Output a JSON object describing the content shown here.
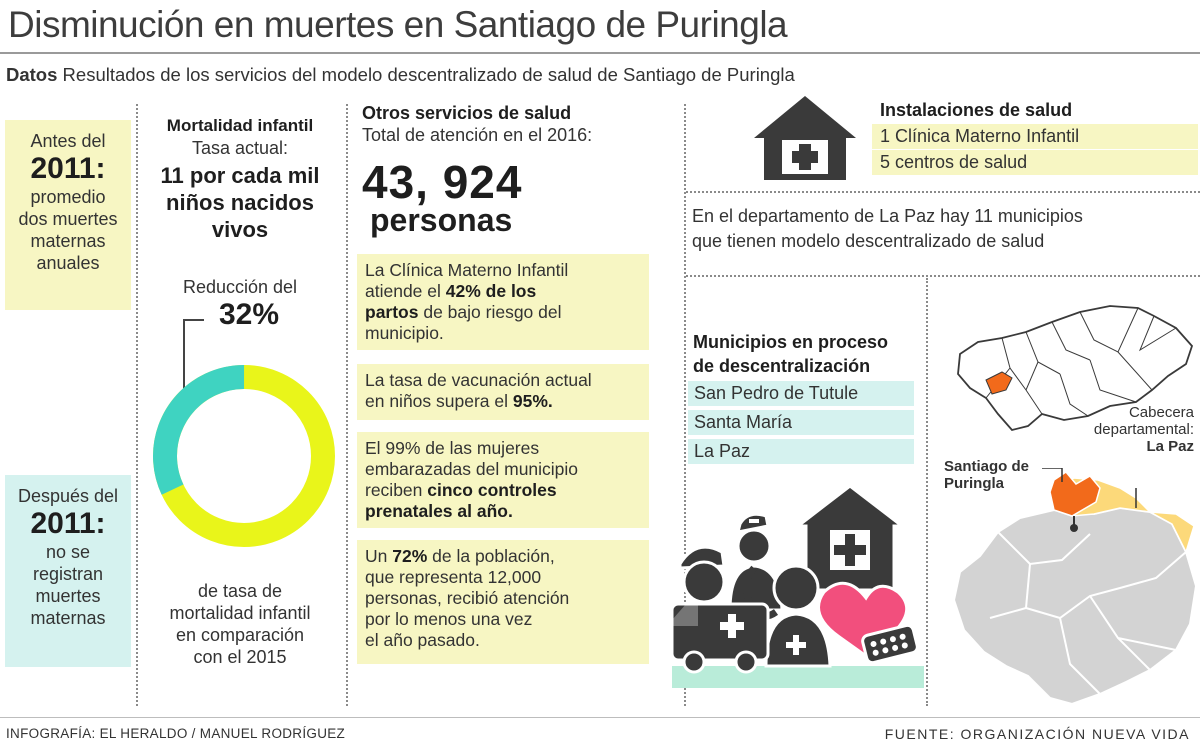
{
  "title": "Disminución en muertes en Santiago de Puringla",
  "subtitle": {
    "bold": "Datos",
    "text": " Resultados de los servicios del modelo descentralizado de salud de Santiago de Puringla"
  },
  "before": {
    "l1": "Antes del",
    "year": "2011:",
    "l2": "promedio",
    "l3": "dos muertes",
    "l4": "maternas",
    "l5": "anuales"
  },
  "after": {
    "l1": "Después del",
    "year": "2011:",
    "l2": "no se",
    "l3": "registran",
    "l4": "muertes",
    "l5": "maternas"
  },
  "mortality": {
    "title": "Mortalidad infantil",
    "rate_label": "Tasa actual:",
    "rate_l1": "11 por cada mil",
    "rate_l2": "niños nacidos",
    "rate_l3": "vivos",
    "reduction_label": "Reducción del",
    "reduction_value": "32%",
    "reduction_fraction": 0.32,
    "desc_l1": "de  tasa de",
    "desc_l2": "mortalidad infantil",
    "desc_l3": "en comparación",
    "desc_l4": "con el 2015"
  },
  "other_services": {
    "title": "Otros servicios de salud",
    "total_label": "Total de atención en el 2016:",
    "total_value": "43, 924",
    "total_unit": "personas",
    "box1": {
      "a": "La Clínica Materno Infantil",
      "b": "atiende el ",
      "b_bold": "42% de los",
      "c_bold": "partos",
      "c": " de bajo riesgo del",
      "d": "municipio."
    },
    "box2": {
      "a": "La tasa de vacunación actual",
      "b": "en niños supera el ",
      "b_bold": "95%."
    },
    "box3": {
      "a": "El  99% de las  mujeres",
      "b": "embarazadas del municipio",
      "c": "reciben ",
      "c_bold": "cinco controles",
      "d_bold": "prenatales al año."
    },
    "box4": {
      "a1": "Un ",
      "a_bold": "72%",
      "a2": " de la población,",
      "b": "que representa 12,000",
      "c": "personas, recibió atención",
      "d": "por lo menos una vez",
      "e": "el año pasado."
    }
  },
  "facilities": {
    "title": "Instalaciones de salud",
    "items": [
      "1 Clínica Materno Infantil",
      "5 centros de salud"
    ]
  },
  "department": {
    "l1": "En el departamento de La Paz hay 11 municipios",
    "l2": "que tienen modelo descentralizado de salud"
  },
  "municipalities": {
    "title_l1": "Municipios en proceso",
    "title_l2": "de descentralización",
    "items": [
      "San Pedro de Tutule",
      "Santa María",
      "La Paz"
    ]
  },
  "map": {
    "santiago_l1": "Santiago de",
    "santiago_l2": "Puringla",
    "cabecera_l1": "Cabecera",
    "cabecera_l2": "departamental:",
    "cabecera_bold": "La Paz"
  },
  "credit": "INFOGRAFÍA: EL HERALDO / MANUEL RODRÍGUEZ",
  "source": "FUENTE:  ORGANIZACIÓN  NUEVA  VIDA",
  "colors": {
    "yellow": "#f7f6c3",
    "cyan": "#d5f2ef",
    "donut_yellow": "#e9f51a",
    "donut_teal": "#3fd3c1",
    "orange": "#f26a1b",
    "light_orange": "#fcd97a",
    "gray_map": "#d3d3d3",
    "icon_dark": "#3a3a3a"
  }
}
